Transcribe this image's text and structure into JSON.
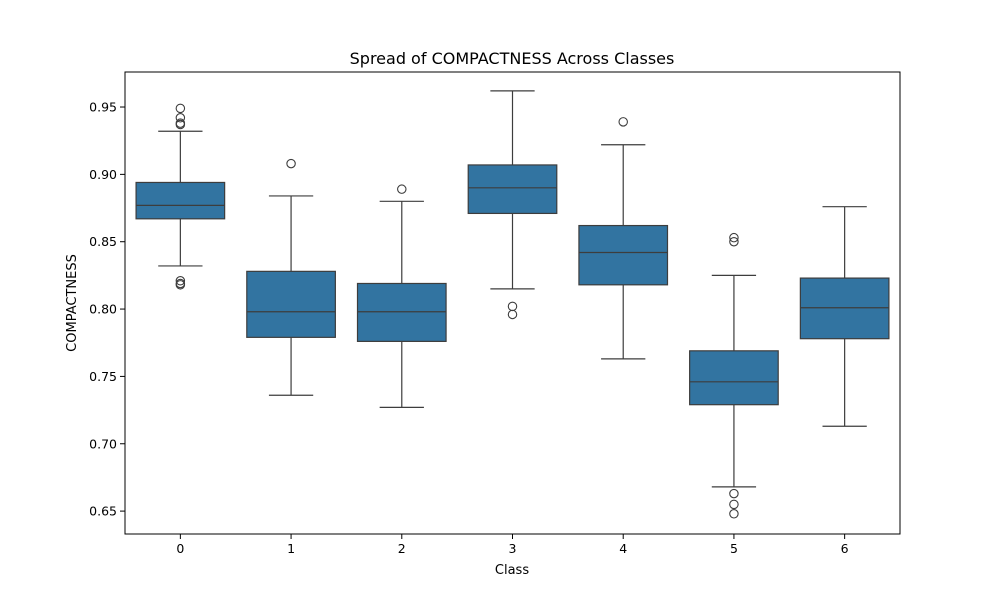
{
  "chart_data": {
    "type": "box",
    "title": "Spread of COMPACTNESS Across Classes",
    "xlabel": "Class",
    "ylabel": "COMPACTNESS",
    "categories": [
      "0",
      "1",
      "2",
      "3",
      "4",
      "5",
      "6"
    ],
    "ylim": [
      0.633,
      0.976
    ],
    "yticks": [
      0.65,
      0.7,
      0.75,
      0.8,
      0.85,
      0.9,
      0.95
    ],
    "ytick_labels": [
      "0.65",
      "0.70",
      "0.75",
      "0.80",
      "0.85",
      "0.90",
      "0.95"
    ],
    "grid": false,
    "box_color": "#3274a1",
    "line_color": "#3d3d3d",
    "boxes": [
      {
        "category": "0",
        "whisker_low": 0.832,
        "q1": 0.867,
        "median": 0.877,
        "q3": 0.894,
        "whisker_high": 0.932,
        "outliers": [
          0.949,
          0.942,
          0.938,
          0.937,
          0.821,
          0.819,
          0.818
        ]
      },
      {
        "category": "1",
        "whisker_low": 0.736,
        "q1": 0.779,
        "median": 0.798,
        "q3": 0.828,
        "whisker_high": 0.884,
        "outliers": [
          0.908
        ]
      },
      {
        "category": "2",
        "whisker_low": 0.727,
        "q1": 0.776,
        "median": 0.798,
        "q3": 0.819,
        "whisker_high": 0.88,
        "outliers": [
          0.889
        ]
      },
      {
        "category": "3",
        "whisker_low": 0.815,
        "q1": 0.871,
        "median": 0.89,
        "q3": 0.907,
        "whisker_high": 0.962,
        "outliers": [
          0.802,
          0.796
        ]
      },
      {
        "category": "4",
        "whisker_low": 0.763,
        "q1": 0.818,
        "median": 0.842,
        "q3": 0.862,
        "whisker_high": 0.922,
        "outliers": [
          0.939
        ]
      },
      {
        "category": "5",
        "whisker_low": 0.668,
        "q1": 0.729,
        "median": 0.746,
        "q3": 0.769,
        "whisker_high": 0.825,
        "outliers": [
          0.853,
          0.85,
          0.663,
          0.655,
          0.648
        ]
      },
      {
        "category": "6",
        "whisker_low": 0.713,
        "q1": 0.778,
        "median": 0.801,
        "q3": 0.823,
        "whisker_high": 0.876,
        "outliers": []
      }
    ]
  }
}
